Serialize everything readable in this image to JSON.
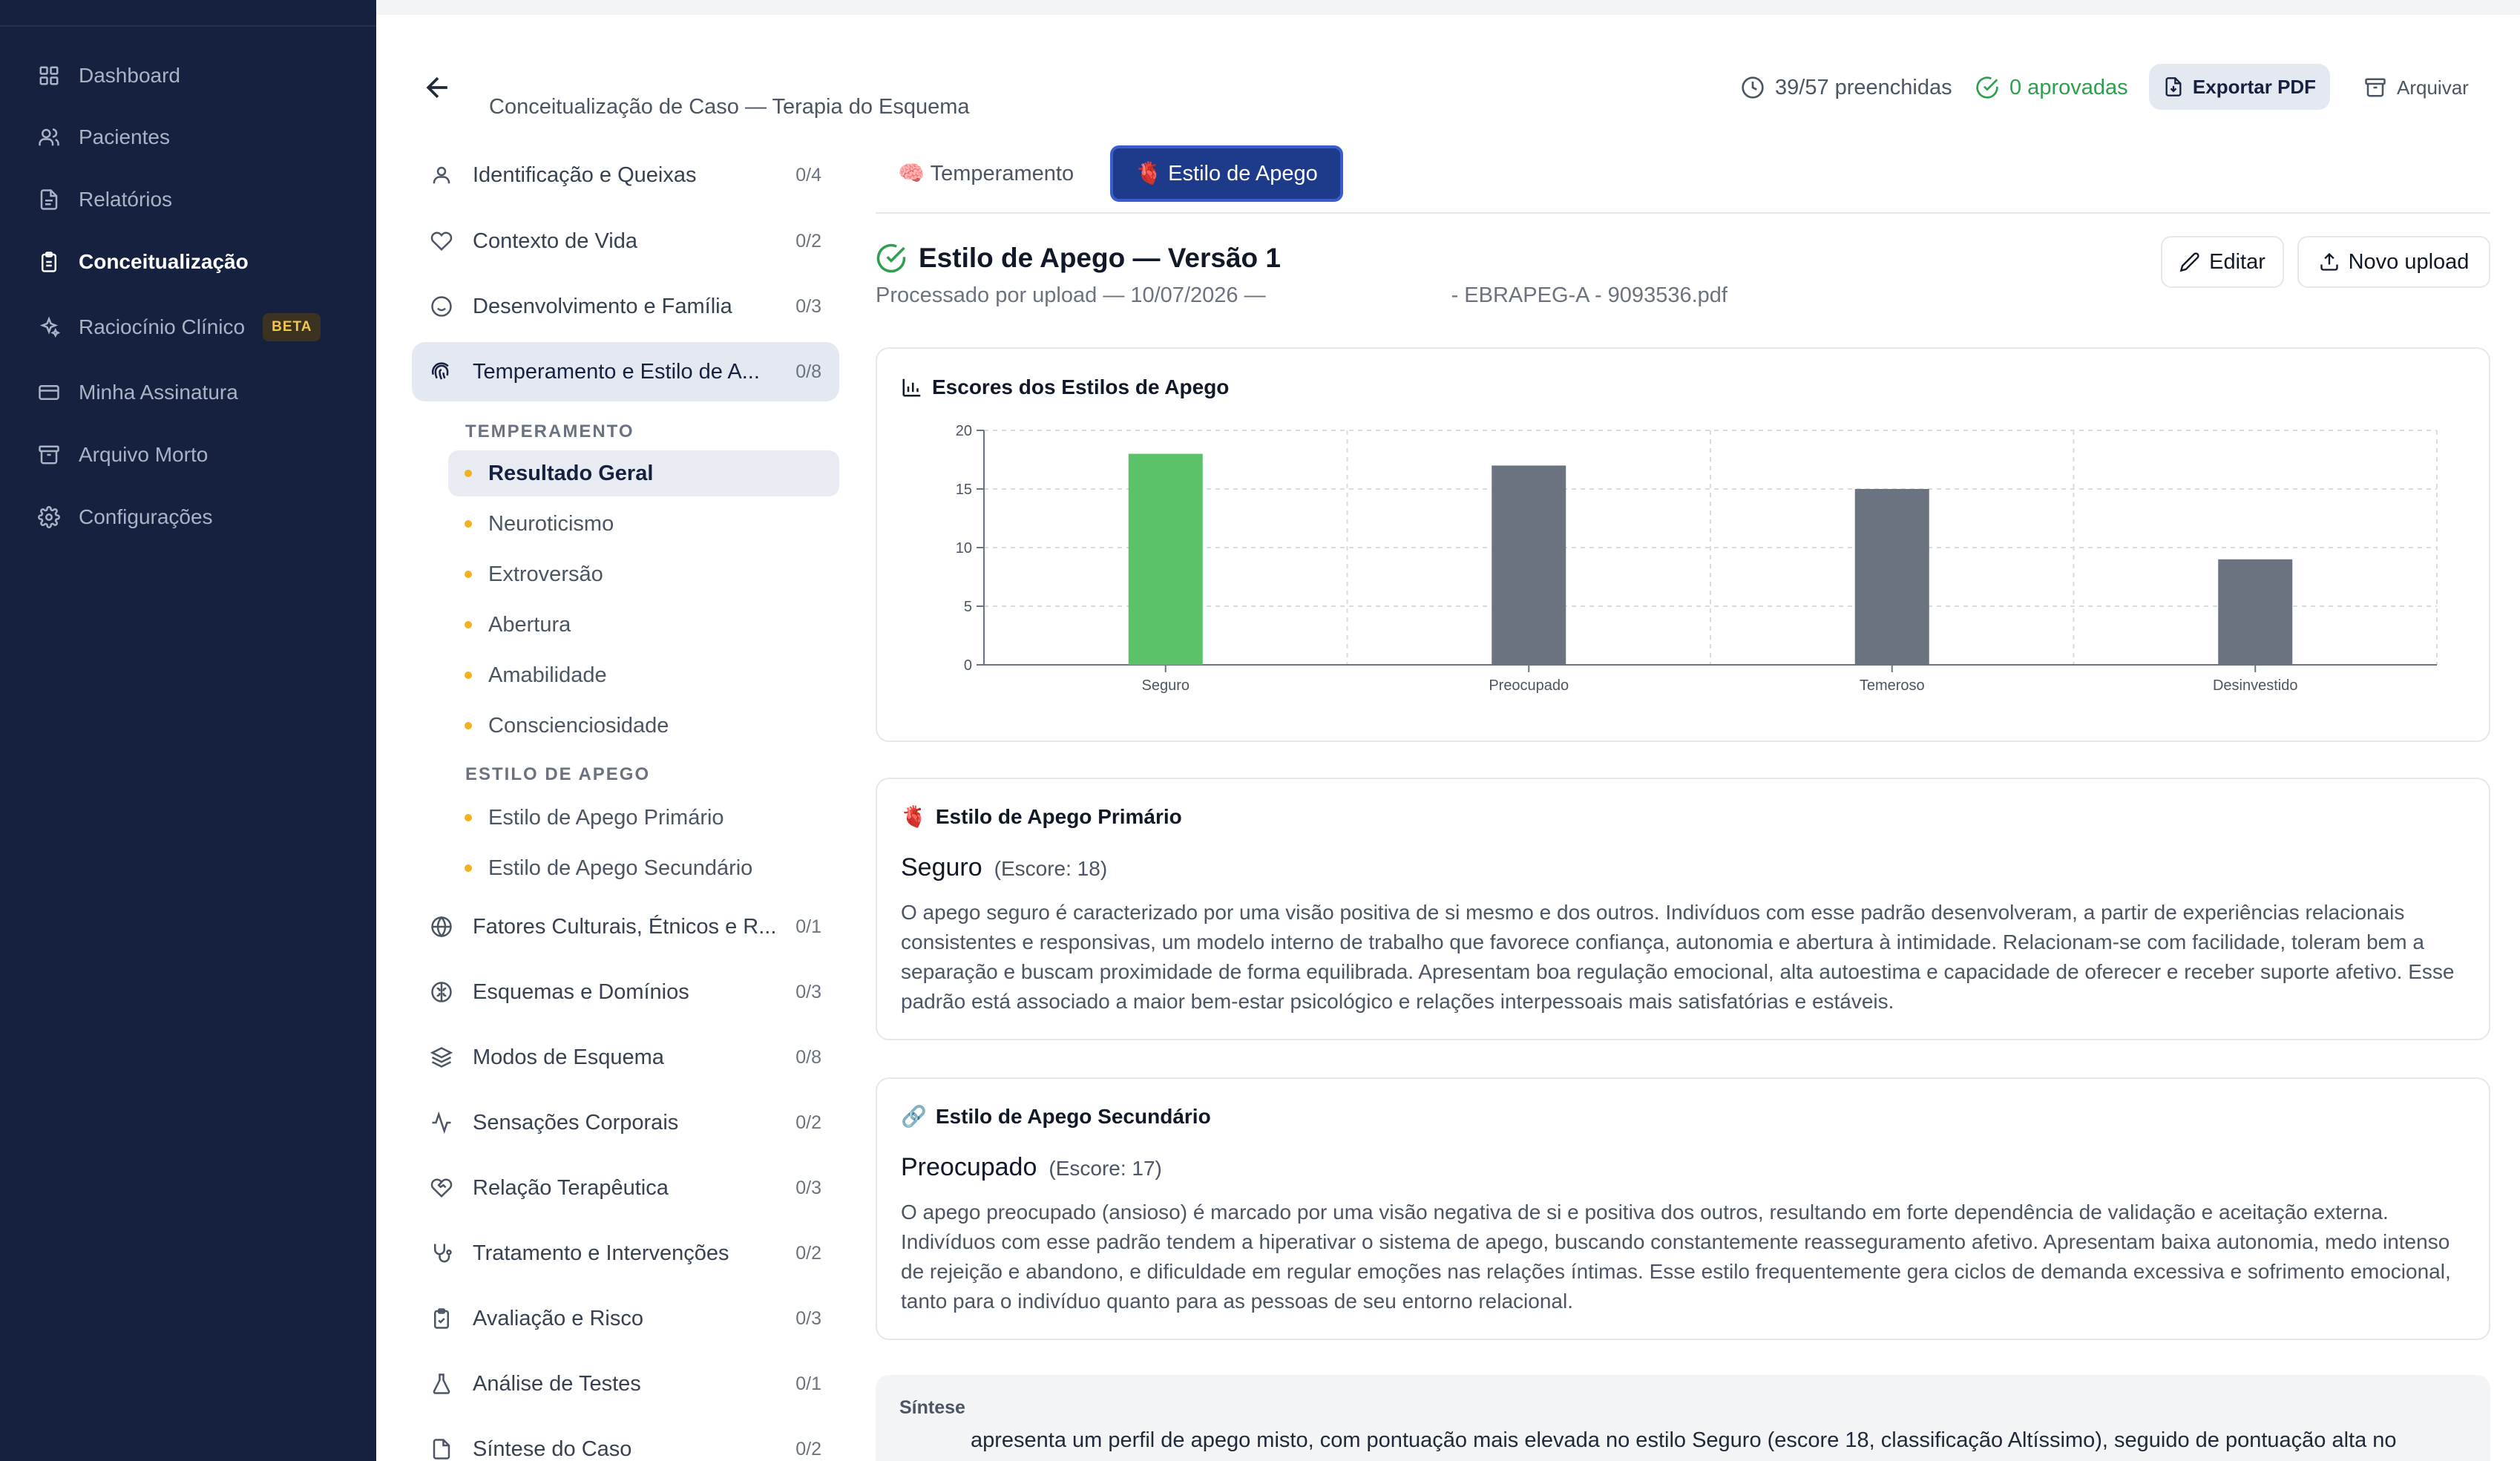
{
  "nav": {
    "items": [
      {
        "label": "Dashboard",
        "icon": "grid-icon"
      },
      {
        "label": "Pacientes",
        "icon": "users-icon"
      },
      {
        "label": "Relatórios",
        "icon": "file-text-icon"
      },
      {
        "label": "Conceitualização",
        "icon": "clipboard-icon",
        "active": true
      },
      {
        "label": "Raciocínio Clínico",
        "icon": "sparkles-icon",
        "badge": "BETA"
      },
      {
        "label": "Minha Assinatura",
        "icon": "credit-card-icon"
      },
      {
        "label": "Arquivo Morto",
        "icon": "archive-icon"
      },
      {
        "label": "Configurações",
        "icon": "gear-icon"
      }
    ]
  },
  "header": {
    "subtitle": "Conceitualização de Caso — Terapia do Esquema",
    "filled": "39/57 preenchidas",
    "approved": "0 aprovadas",
    "export_label": "Exportar PDF",
    "archive_label": "Arquivar"
  },
  "sections": [
    {
      "label": "Identificação e Queixas",
      "count": "0/4",
      "icon": "user-icon"
    },
    {
      "label": "Contexto de Vida",
      "count": "0/2",
      "icon": "heart-icon"
    },
    {
      "label": "Desenvolvimento e Família",
      "count": "0/3",
      "icon": "smile-icon"
    },
    {
      "label": "Temperamento e Estilo de A...",
      "count": "0/8",
      "icon": "fingerprint-icon",
      "active": true
    },
    {
      "label": "Fatores Culturais, Étnicos e R...",
      "count": "0/1",
      "icon": "globe-icon"
    },
    {
      "label": "Esquemas e Domínios",
      "count": "0/3",
      "icon": "brain-icon"
    },
    {
      "label": "Modos de Esquema",
      "count": "0/8",
      "icon": "layers-icon"
    },
    {
      "label": "Sensações Corporais",
      "count": "0/2",
      "icon": "activity-icon"
    },
    {
      "label": "Relação Terapêutica",
      "count": "0/3",
      "icon": "heart-handshake-icon"
    },
    {
      "label": "Tratamento e Intervenções",
      "count": "0/2",
      "icon": "stethoscope-icon"
    },
    {
      "label": "Avaliação e Risco",
      "count": "0/3",
      "icon": "clipboard-check-icon"
    },
    {
      "label": "Análise de Testes",
      "count": "0/1",
      "icon": "flask-icon"
    },
    {
      "label": "Síntese do Caso",
      "count": "0/2",
      "icon": "file-icon"
    }
  ],
  "subsections": {
    "temperamento_heading": "TEMPERAMENTO",
    "temperamento": [
      "Resultado Geral",
      "Neuroticismo",
      "Extroversão",
      "Abertura",
      "Amabilidade",
      "Conscienciosidade"
    ],
    "apego_heading": "ESTILO DE APEGO",
    "apego": [
      "Estilo de Apego Primário",
      "Estilo de Apego Secundário"
    ]
  },
  "tabs": [
    {
      "label": "🧠 Temperamento"
    },
    {
      "label": "🫀 Estilo de Apego",
      "active": true
    }
  ],
  "version": {
    "title": "Estilo de Apego — Versão 1",
    "processed": "Processado por upload — 10/07/2026 —",
    "file": "- EBRAPEG-A - 9093536.pdf",
    "edit_label": "Editar",
    "upload_label": "Novo upload"
  },
  "chart_card": {
    "title": "Escores dos Estilos de Apego"
  },
  "chart_data": {
    "type": "bar",
    "categories": [
      "Seguro",
      "Preocupado",
      "Temeroso",
      "Desinvestido"
    ],
    "values": [
      18,
      17,
      15,
      9
    ],
    "colors": [
      "#5bc26a",
      "#6b7280",
      "#6b7280",
      "#6b7280"
    ],
    "ylim": [
      0,
      20
    ],
    "yticks": [
      0,
      5,
      10,
      15,
      20
    ],
    "grid": true
  },
  "primary": {
    "heading": "Estilo de Apego Primário",
    "name": "Seguro",
    "score": "(Escore: 18)",
    "text": "O apego seguro é caracterizado por uma visão positiva de si mesmo e dos outros. Indivíduos com esse padrão desenvolveram, a partir de experiências relacionais consistentes e responsivas, um modelo interno de trabalho que favorece confiança, autonomia e abertura à intimidade. Relacionam-se com facilidade, toleram bem a separação e buscam proximidade de forma equilibrada. Apresentam boa regulação emocional, alta autoestima e capacidade de oferecer e receber suporte afetivo. Esse padrão está associado a maior bem-estar psicológico e relações interpessoais mais satisfatórias e estáveis."
  },
  "secondary": {
    "heading": "Estilo de Apego Secundário",
    "name": "Preocupado",
    "score": "(Escore: 17)",
    "text": "O apego preocupado (ansioso) é marcado por uma visão negativa de si e positiva dos outros, resultando em forte dependência de validação e aceitação externa. Indivíduos com esse padrão tendem a hiperativar o sistema de apego, buscando constantemente reasseguramento afetivo. Apresentam baixa autonomia, medo intenso de rejeição e abandono, e dificuldade em regular emoções nas relações íntimas. Esse estilo frequentemente gera ciclos de demanda excessiva e sofrimento emocional, tanto para o indivíduo quanto para as pessoas de seu entorno relacional."
  },
  "synthesis": {
    "label": "Síntese",
    "text": "apresenta um perfil de apego misto, com pontuação mais elevada no estilo Seguro (escore 18, classificação Altíssimo), seguido de pontuação alta no"
  }
}
